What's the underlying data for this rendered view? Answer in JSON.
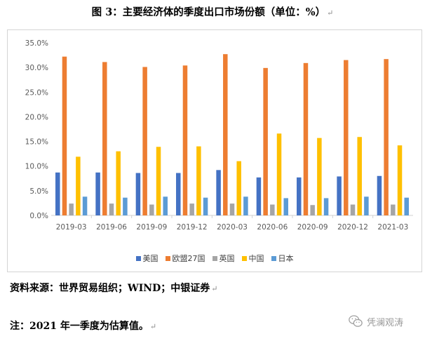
{
  "header": {
    "title": "图 3：主要经济体的季度出口市场份额（单位：%）"
  },
  "chart_data": {
    "type": "bar",
    "title": "",
    "xlabel": "",
    "ylabel": "",
    "ylim": [
      0,
      35
    ],
    "y_ticks": [
      "0.0%",
      "5.0%",
      "10.0%",
      "15.0%",
      "20.0%",
      "25.0%",
      "30.0%",
      "35.0%"
    ],
    "grid": false,
    "legend_position": "bottom",
    "categories": [
      "2019-03",
      "2019-06",
      "2019-09",
      "2019-12",
      "2020-03",
      "2020-06",
      "2020-09",
      "2020-12",
      "2021-03"
    ],
    "series": [
      {
        "name": "美国",
        "color": "#4472c4",
        "values": [
          8.7,
          8.7,
          8.6,
          8.6,
          9.2,
          7.7,
          7.7,
          7.9,
          8.0
        ]
      },
      {
        "name": "欧盟27国",
        "color": "#ed7d31",
        "values": [
          32.2,
          31.1,
          30.1,
          30.4,
          32.7,
          29.9,
          30.9,
          31.5,
          31.7
        ]
      },
      {
        "name": "英国",
        "color": "#a5a5a5",
        "values": [
          2.4,
          2.4,
          2.2,
          2.4,
          2.4,
          2.2,
          2.1,
          2.2,
          2.2
        ]
      },
      {
        "name": "中国",
        "color": "#ffc000",
        "values": [
          11.9,
          13.0,
          13.9,
          14.0,
          11.0,
          16.6,
          15.7,
          15.9,
          14.2
        ]
      },
      {
        "name": "日本",
        "color": "#5b9bd5",
        "values": [
          3.8,
          3.6,
          3.8,
          3.6,
          3.8,
          3.5,
          3.5,
          3.8,
          3.6
        ]
      }
    ]
  },
  "footer": {
    "source": "资料来源：世界贸易组织；WIND；中银证券",
    "note": "注：2021 年一季度为估算值。"
  },
  "watermark": {
    "text": "凭澜观涛",
    "icon": "wechat-icon"
  }
}
